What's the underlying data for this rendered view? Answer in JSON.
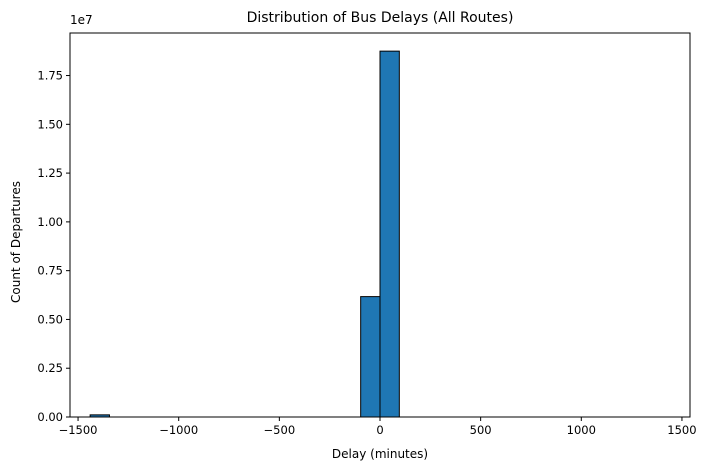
{
  "chart_data": {
    "type": "bar",
    "title": "Distribution of Bus Delays (All Routes)",
    "xlabel": "Delay (minutes)",
    "ylabel": "Count of Departures",
    "y_offset_text": "1e7",
    "xlim": [
      -1540,
      1540
    ],
    "ylim": [
      0,
      19680000
    ],
    "x_ticks": [
      -1500,
      -1000,
      -500,
      0,
      500,
      1000,
      1500
    ],
    "x_tick_labels": [
      "−1500",
      "−1000",
      "−500",
      "0",
      "500",
      "1000",
      "1500"
    ],
    "y_ticks": [
      0,
      2500000,
      5000000,
      7500000,
      10000000,
      12500000,
      15000000,
      17500000
    ],
    "y_tick_labels": [
      "0.00",
      "0.25",
      "0.50",
      "0.75",
      "1.00",
      "1.25",
      "1.50",
      "1.75"
    ],
    "bin_edges": [
      -1440,
      -1344,
      -1248,
      -1152,
      -1056,
      -960,
      -864,
      -768,
      -672,
      -576,
      -480,
      -384,
      -288,
      -192,
      -96,
      0,
      96,
      192,
      288,
      384,
      480,
      576,
      672,
      768,
      864,
      960,
      1056,
      1152,
      1248,
      1344,
      1440
    ],
    "values": [
      110000,
      0,
      0,
      0,
      0,
      0,
      0,
      0,
      0,
      0,
      0,
      0,
      0,
      0,
      6170000,
      18750000,
      0,
      0,
      0,
      0,
      0,
      0,
      0,
      0,
      0,
      0,
      0,
      0,
      0,
      0
    ],
    "grid": false,
    "colors": {
      "bar": "#1f77b4",
      "edge": "#000000"
    }
  }
}
